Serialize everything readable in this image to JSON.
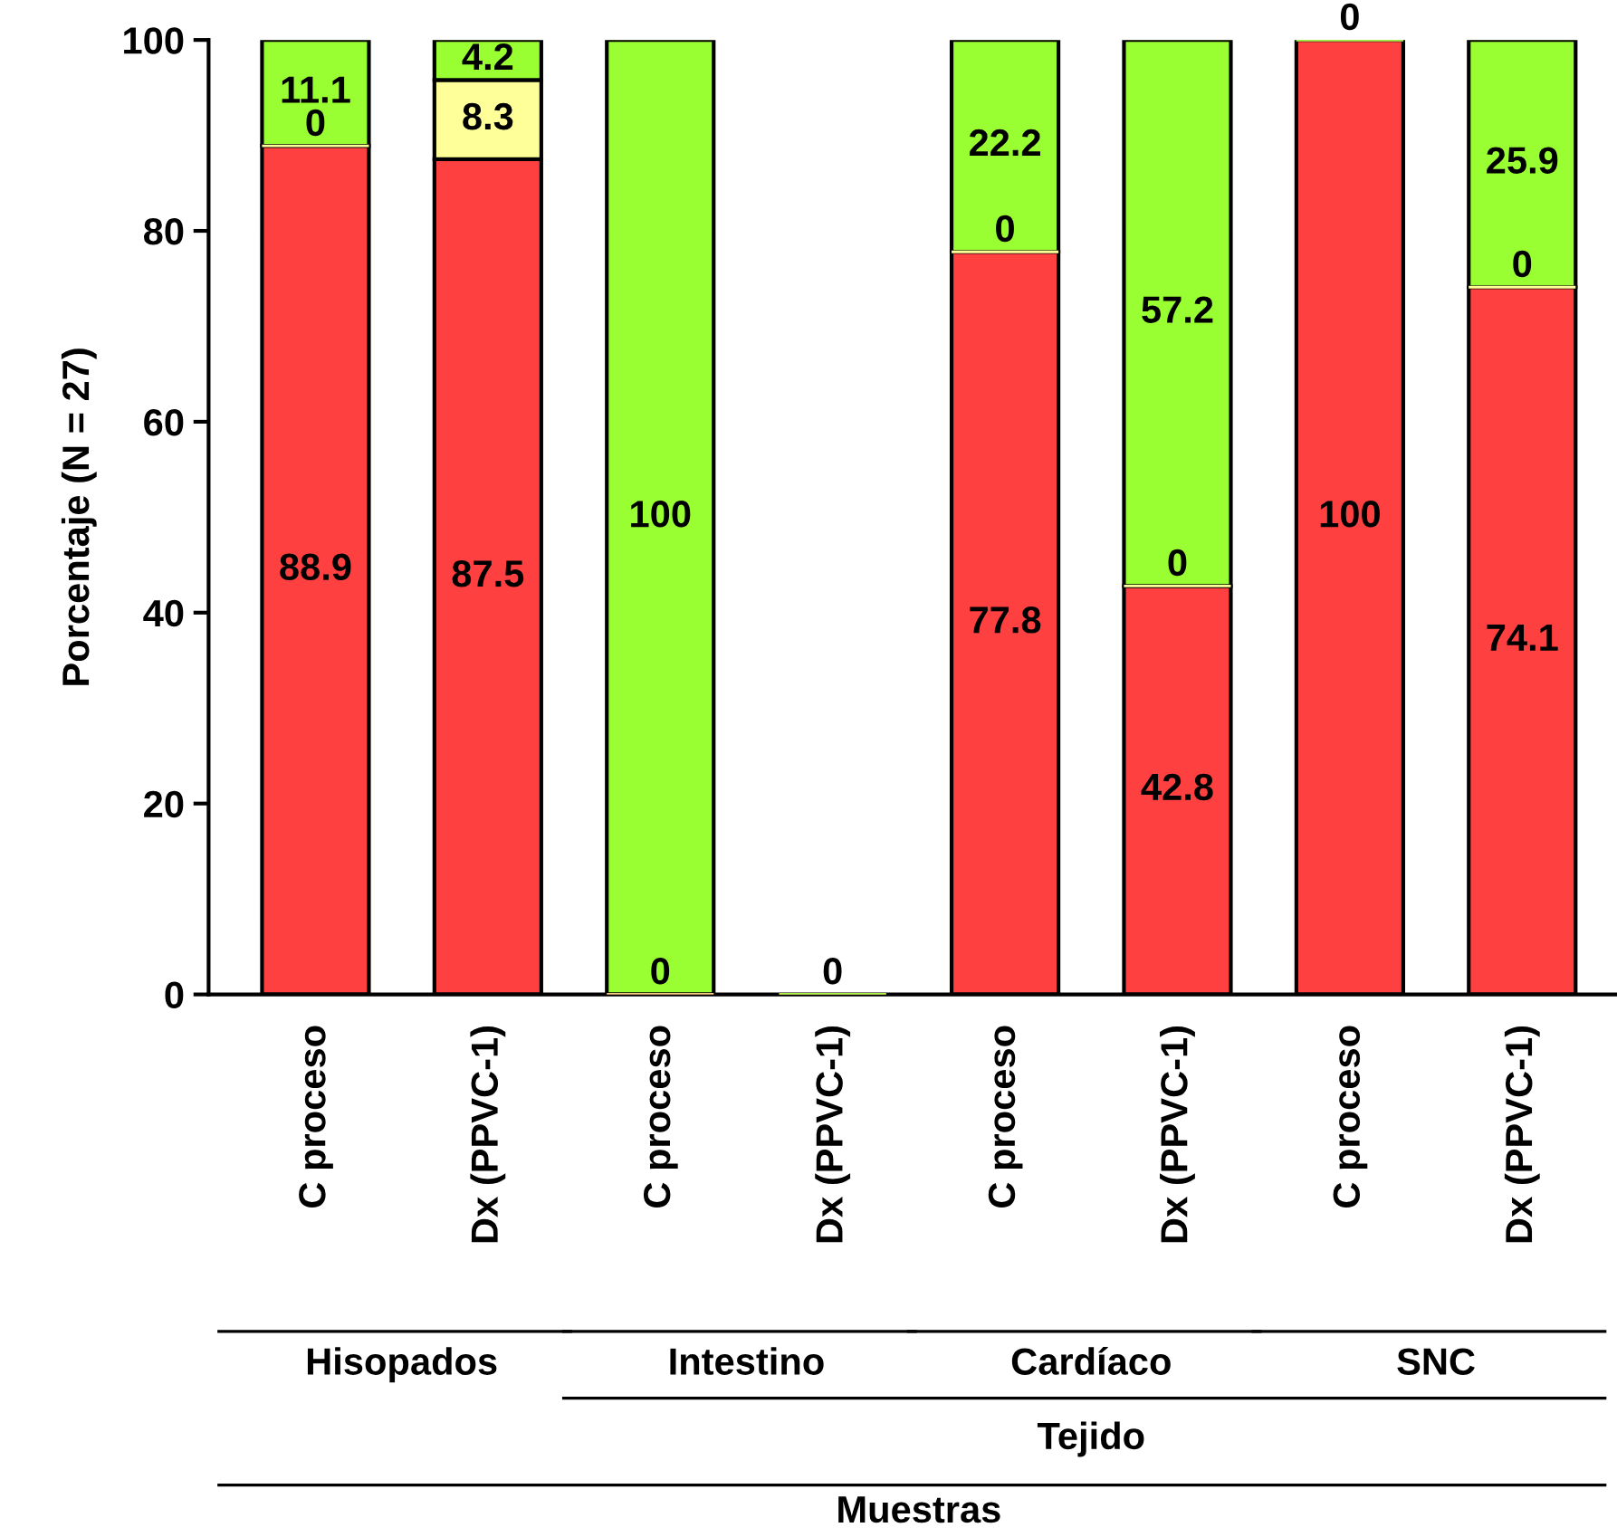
{
  "chart_data": {
    "type": "bar",
    "stacked": true,
    "ylabel": "Porcentaje (N = 27)",
    "categories": [
      "C proceso",
      "Dx (PPVC-1)",
      "C proceso",
      "Dx (PPVC-1)",
      "C proceso",
      "Dx (PPVC-1)",
      "C proceso",
      "Dx (PPVC-1)"
    ],
    "series": [
      {
        "color": "#ff4040",
        "values": [
          88.9,
          87.5,
          0,
          0,
          77.8,
          42.8,
          100,
          74.1
        ],
        "value_labels": [
          "88.9",
          "87.5",
          "0",
          "0",
          "77.8",
          "42.8",
          "100",
          "74.1"
        ]
      },
      {
        "color": "#ffff99",
        "values": [
          0,
          8.3,
          0,
          0,
          0,
          0,
          0,
          0
        ],
        "value_labels": [
          "0",
          "8.3",
          null,
          null,
          "0",
          "0",
          null,
          "0"
        ]
      },
      {
        "color": "#99ff33",
        "values": [
          11.1,
          4.2,
          100,
          0,
          22.2,
          57.2,
          0,
          25.9
        ],
        "value_labels": [
          "11.1",
          "4.2",
          "100",
          null,
          "22.2",
          "57.2",
          "0",
          "25.9"
        ]
      }
    ],
    "ylim": [
      0,
      100
    ],
    "yticks": [
      0,
      20,
      40,
      60,
      80,
      100
    ],
    "grid": false,
    "legend": false,
    "annotations": [
      "Hisopados",
      "Intestino",
      "Cardíaco",
      "SNC",
      "Tejido",
      "Muestras"
    ]
  }
}
